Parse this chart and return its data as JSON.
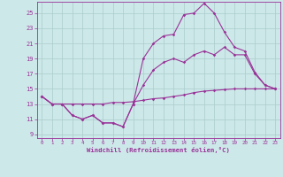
{
  "xlabel": "Windchill (Refroidissement éolien,°C)",
  "x_ticks": [
    0,
    1,
    2,
    3,
    4,
    5,
    6,
    7,
    8,
    9,
    10,
    11,
    12,
    13,
    14,
    15,
    16,
    17,
    18,
    19,
    20,
    21,
    22,
    23
  ],
  "y_ticks": [
    9,
    11,
    13,
    15,
    17,
    19,
    21,
    23,
    25
  ],
  "xlim": [
    -0.5,
    23.5
  ],
  "ylim": [
    8.5,
    26.5
  ],
  "bg_color": "#cde8e8",
  "line_color": "#993399",
  "grid_color": "#aacccc",
  "line1_y": [
    14.0,
    13.0,
    13.0,
    13.0,
    13.0,
    13.0,
    13.0,
    13.2,
    13.2,
    13.3,
    13.5,
    13.7,
    13.8,
    14.0,
    14.2,
    14.5,
    14.7,
    14.8,
    14.9,
    15.0,
    15.0,
    15.0,
    15.0,
    15.0
  ],
  "line2_y": [
    14.0,
    13.0,
    13.0,
    11.5,
    11.0,
    11.5,
    10.5,
    10.5,
    10.0,
    13.0,
    15.5,
    17.5,
    18.5,
    19.0,
    18.5,
    19.5,
    20.0,
    19.5,
    20.5,
    19.5,
    19.5,
    17.0,
    15.5,
    15.0
  ],
  "line3_y": [
    14.0,
    13.0,
    13.0,
    11.5,
    11.0,
    11.5,
    10.5,
    10.5,
    10.0,
    13.0,
    19.0,
    21.0,
    22.0,
    22.2,
    24.8,
    25.0,
    26.3,
    25.0,
    22.5,
    20.5,
    20.0,
    17.2,
    15.5,
    15.0
  ]
}
